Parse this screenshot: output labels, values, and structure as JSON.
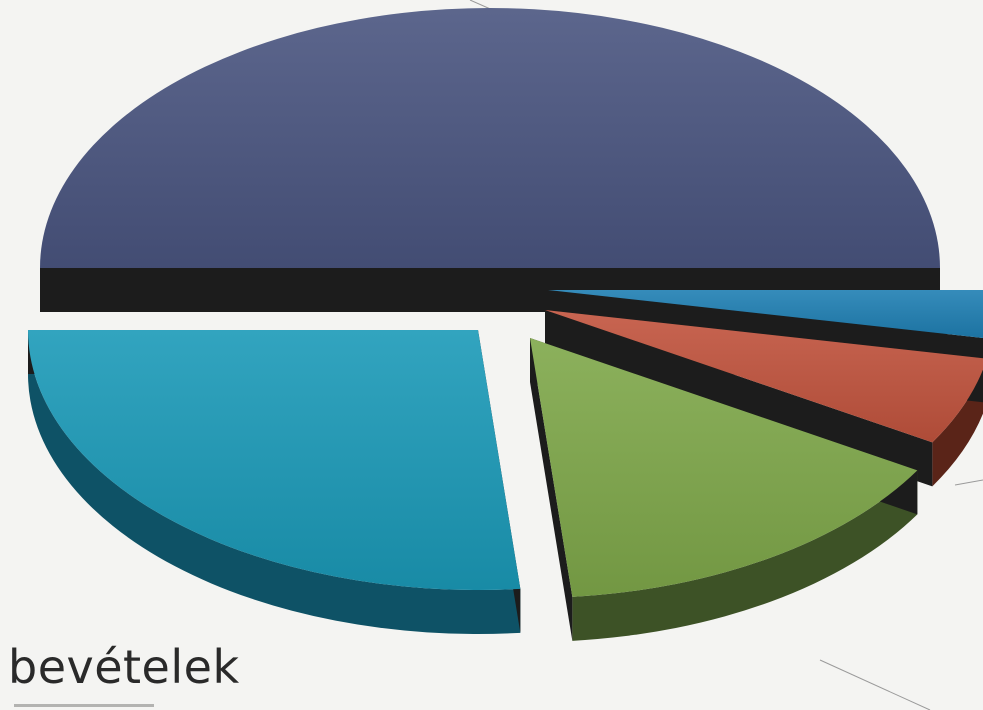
{
  "caption": "bevételek",
  "chart_data": {
    "type": "pie",
    "title": "",
    "style": "3d-exploded",
    "slices": [
      {
        "value": 50.0,
        "color": "#4a5580",
        "side": "#23283c"
      },
      {
        "value": 3.0,
        "color": "#1f7fb3",
        "side": "#0f3f5a"
      },
      {
        "value": 5.5,
        "color": "#c2543e",
        "side": "#5a2418"
      },
      {
        "value": 15.0,
        "color": "#7fa84a",
        "side": "#3d5226"
      },
      {
        "value": 26.5,
        "color": "#1b9ab8",
        "side": "#0e5266"
      }
    ]
  }
}
